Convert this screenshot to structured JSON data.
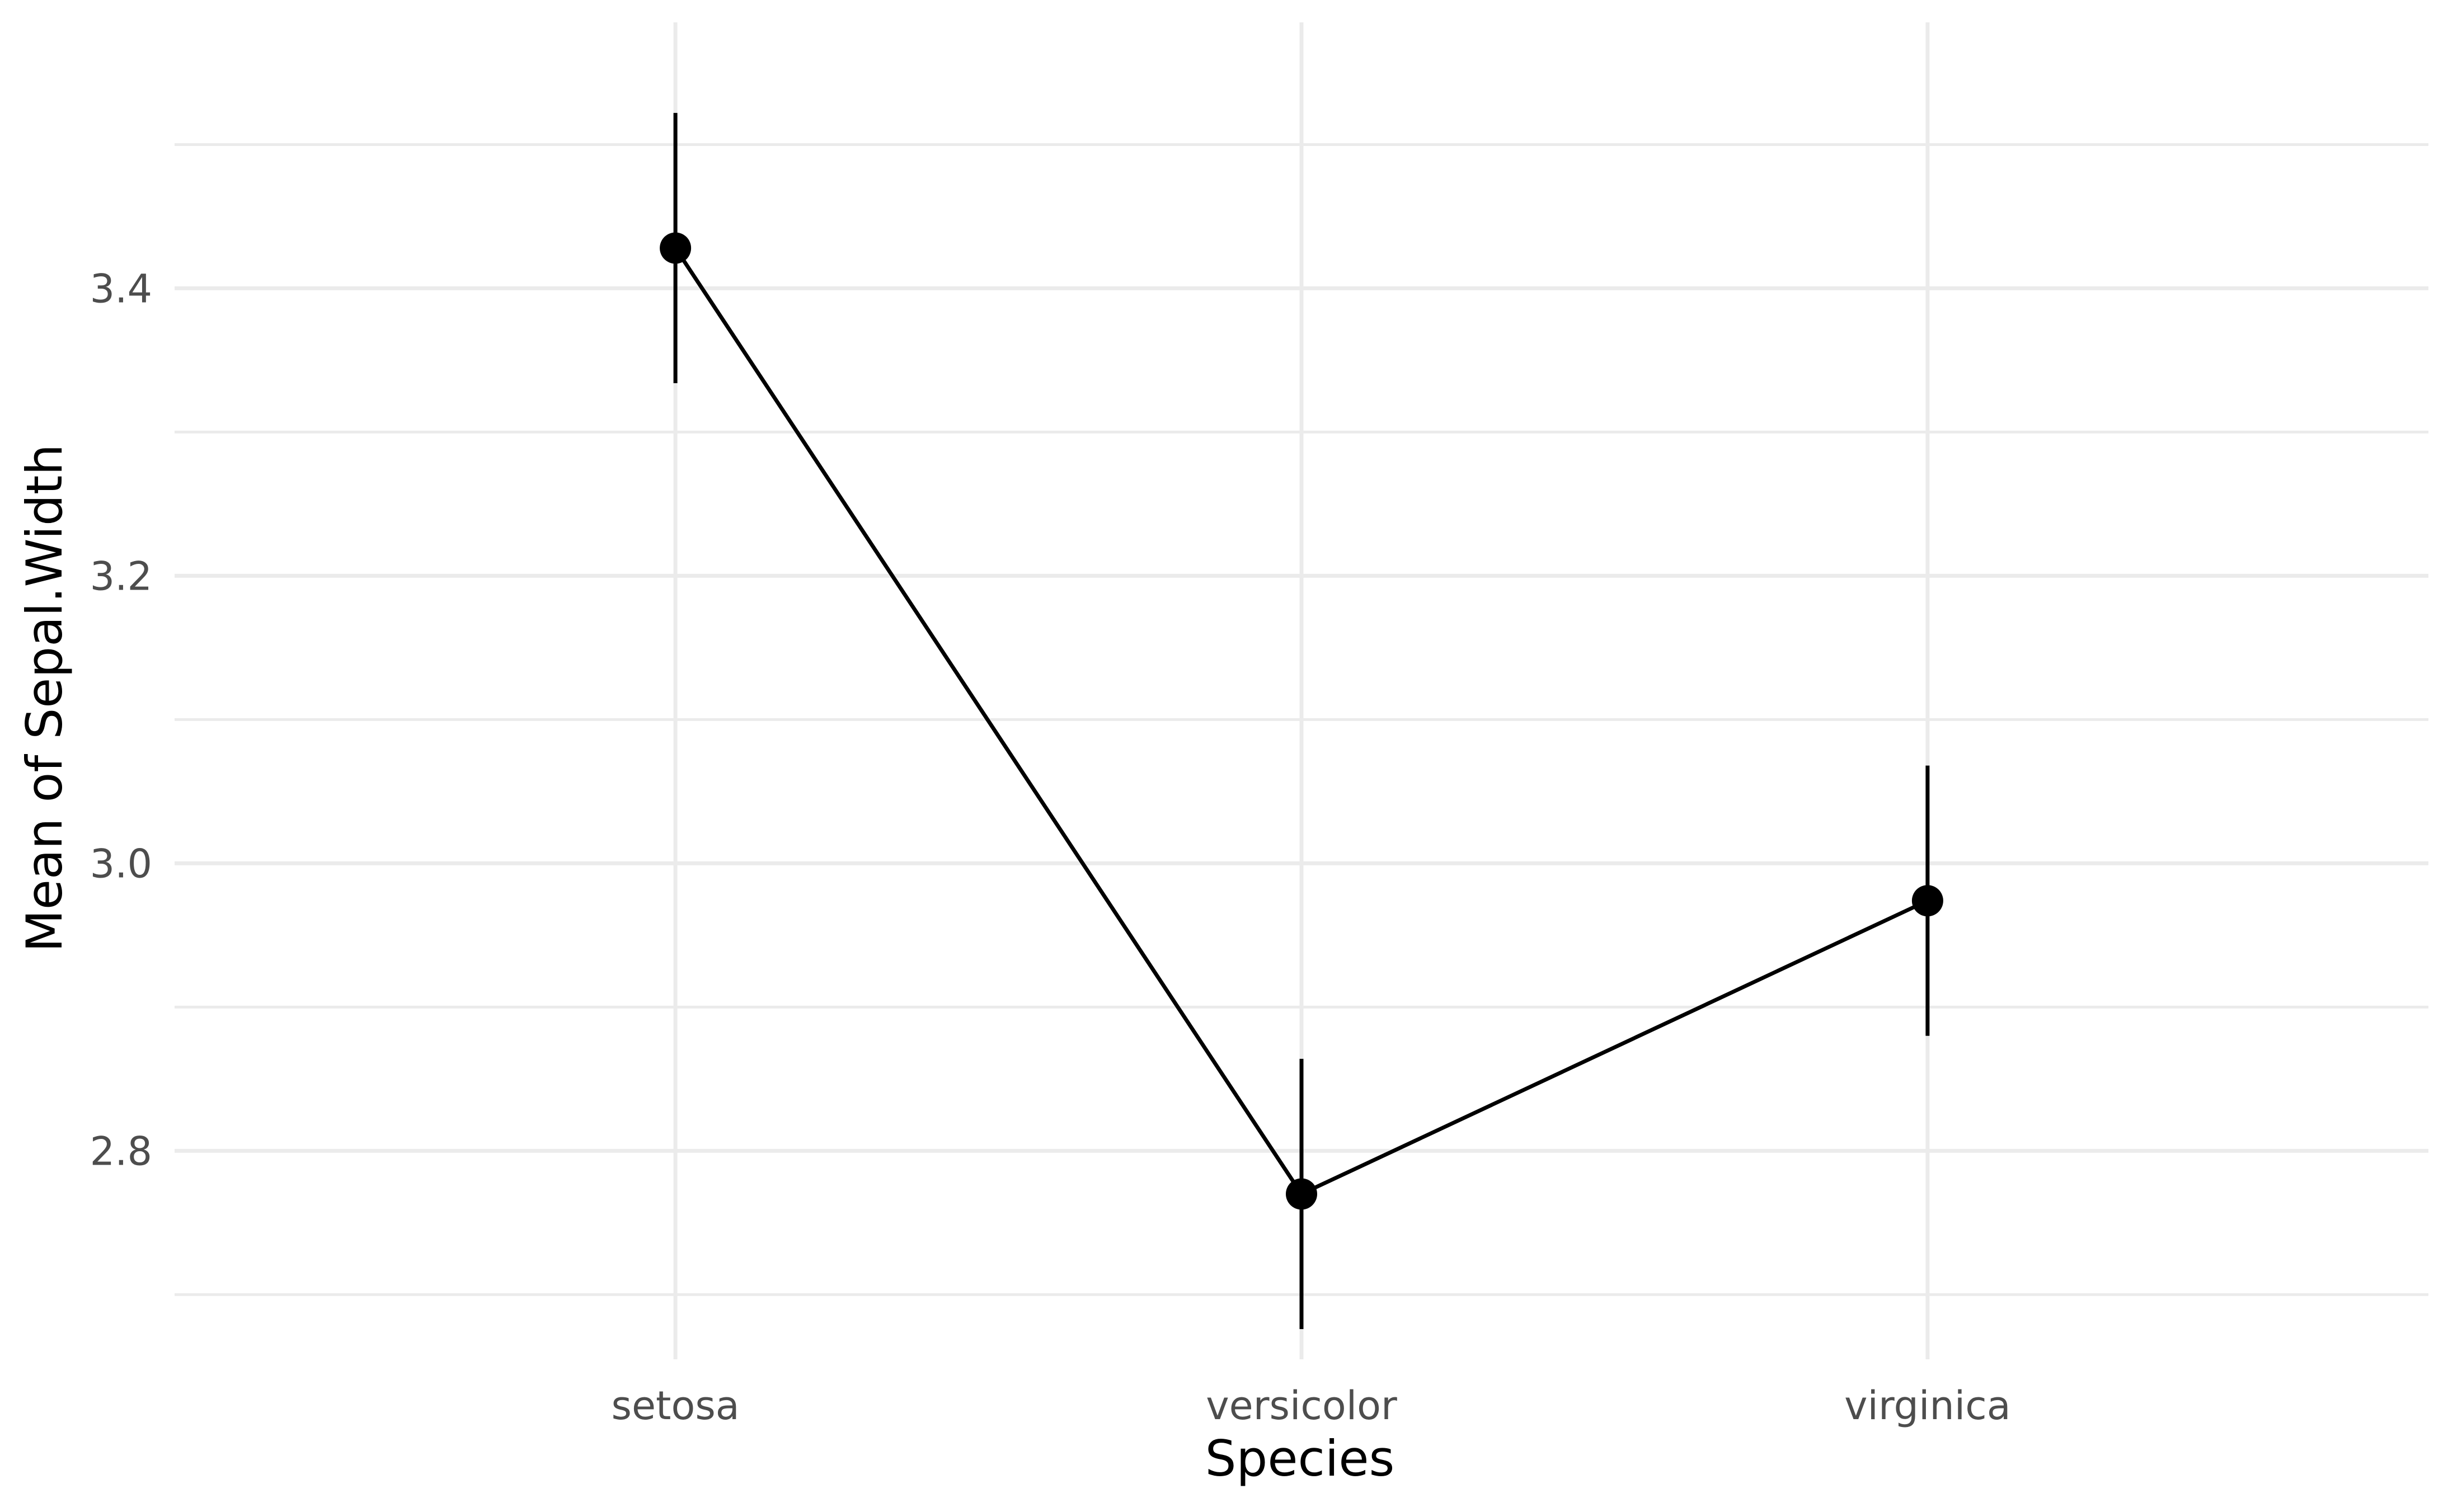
{
  "chart_data": {
    "type": "line",
    "title": "",
    "xlabel": "Species",
    "ylabel": "Mean of Sepal.Width",
    "categories": [
      "setosa",
      "versicolor",
      "virginica"
    ],
    "series": [
      {
        "values": [
          3.428,
          2.77,
          2.974
        ],
        "error_low": [
          3.334,
          2.676,
          2.88
        ],
        "error_high": [
          3.522,
          2.864,
          3.068
        ]
      }
    ],
    "ylim": [
      2.655,
      3.585
    ],
    "yticks": [
      2.8,
      3.0,
      3.2,
      3.4
    ],
    "ytick_labels": [
      "2.8",
      "3.0",
      "3.2",
      "3.4"
    ],
    "grid": true,
    "legend": "none",
    "colors": {
      "series": "#000000",
      "grid": "#ebebeb",
      "tick_text": "#4d4d4d",
      "background": "#ffffff"
    }
  }
}
